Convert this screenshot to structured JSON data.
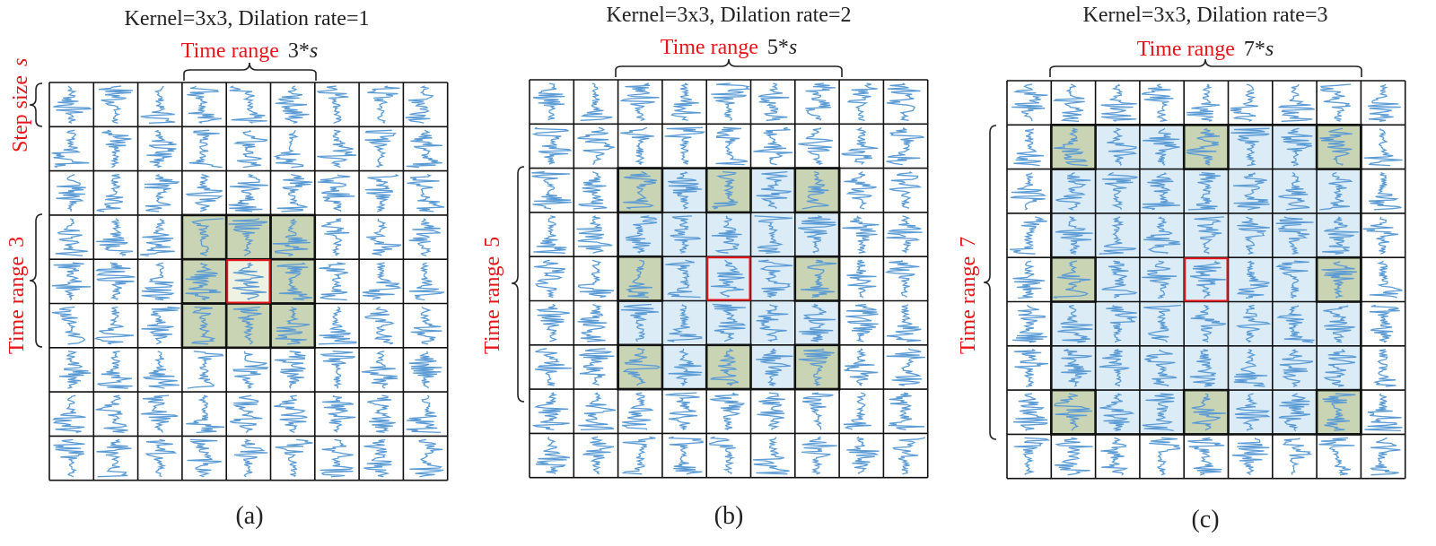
{
  "panels": [
    {
      "title": "Kernel=3x3, Dilation rate=1",
      "top_label_red": "Time range",
      "top_label_value": "3*",
      "top_label_var": "s",
      "side_label_red": "Time range",
      "side_label_value": "3",
      "extra_label": "Step size",
      "extra_label_var": "s",
      "caption": "(a)",
      "dilation": 1
    },
    {
      "title": "Kernel=3x3, Dilation rate=2",
      "top_label_red": "Time range",
      "top_label_value": "5*",
      "top_label_var": "s",
      "side_label_red": "Time range",
      "side_label_value": "5",
      "caption": "(b)",
      "dilation": 2
    },
    {
      "title": "Kernel=3x3, Dilation rate=3",
      "top_label_red": "Time range",
      "top_label_value": "7*",
      "top_label_var": "s",
      "side_label_red": "Time range",
      "side_label_value": "7",
      "caption": "(c)",
      "dilation": 3
    }
  ],
  "colors": {
    "wave": "#5b9bd5",
    "kernel_cell": "#c9d4b4",
    "receptive_field": "#dcecf6",
    "center_border": "#e8141a",
    "red_text": "#e8141a"
  }
}
